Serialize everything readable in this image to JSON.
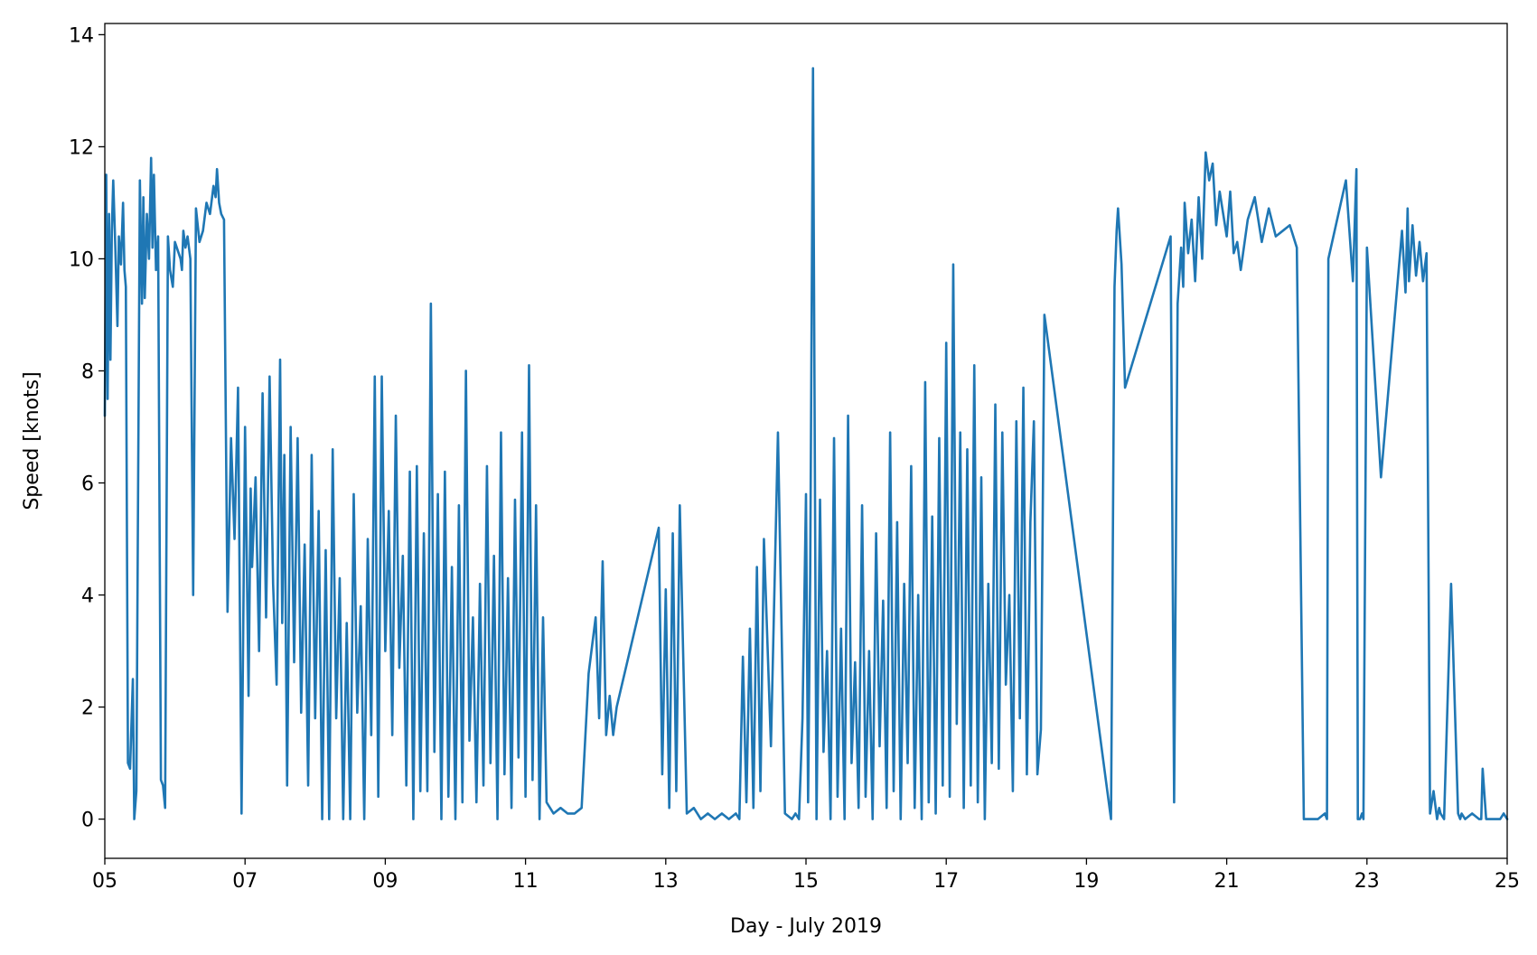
{
  "chart_data": {
    "type": "line",
    "title": "",
    "xlabel": "Day - July 2019",
    "ylabel": "Speed [knots]",
    "xlim": [
      5,
      25
    ],
    "ylim": [
      -0.7,
      14.2
    ],
    "x_ticks": [
      5,
      7,
      9,
      11,
      13,
      15,
      17,
      19,
      21,
      23,
      25
    ],
    "x_tick_labels": [
      "05",
      "07",
      "09",
      "11",
      "13",
      "15",
      "17",
      "19",
      "21",
      "23",
      "25"
    ],
    "y_ticks": [
      0,
      2,
      4,
      6,
      8,
      10,
      12,
      14
    ],
    "y_tick_labels": [
      "0",
      "2",
      "4",
      "6",
      "8",
      "10",
      "12",
      "14"
    ],
    "grid": false,
    "legend": "none",
    "series": [
      {
        "color": "#1f77b4",
        "x": [
          5.0,
          5.02,
          5.04,
          5.06,
          5.08,
          5.1,
          5.12,
          5.15,
          5.18,
          5.2,
          5.23,
          5.26,
          5.28,
          5.3,
          5.33,
          5.36,
          5.4,
          5.42,
          5.45,
          5.5,
          5.53,
          5.55,
          5.57,
          5.6,
          5.63,
          5.66,
          5.68,
          5.7,
          5.73,
          5.76,
          5.8,
          5.83,
          5.86,
          5.9,
          5.93,
          5.97,
          6.0,
          6.08,
          6.1,
          6.12,
          6.15,
          6.18,
          6.22,
          6.26,
          6.3,
          6.35,
          6.4,
          6.45,
          6.5,
          6.55,
          6.58,
          6.6,
          6.63,
          6.66,
          6.7,
          6.75,
          6.8,
          6.85,
          6.9,
          6.95,
          7.0,
          7.05,
          7.08,
          7.1,
          7.15,
          7.2,
          7.25,
          7.3,
          7.35,
          7.4,
          7.45,
          7.5,
          7.53,
          7.56,
          7.6,
          7.65,
          7.7,
          7.75,
          7.8,
          7.85,
          7.9,
          7.95,
          8.0,
          8.05,
          8.1,
          8.15,
          8.2,
          8.25,
          8.3,
          8.35,
          8.4,
          8.45,
          8.5,
          8.55,
          8.6,
          8.65,
          8.7,
          8.75,
          8.8,
          8.85,
          8.9,
          8.95,
          9.0,
          9.05,
          9.1,
          9.15,
          9.2,
          9.25,
          9.3,
          9.35,
          9.4,
          9.45,
          9.5,
          9.55,
          9.6,
          9.65,
          9.7,
          9.75,
          9.8,
          9.85,
          9.9,
          9.95,
          10.0,
          10.05,
          10.1,
          10.15,
          10.2,
          10.25,
          10.3,
          10.35,
          10.4,
          10.45,
          10.5,
          10.55,
          10.6,
          10.65,
          10.7,
          10.75,
          10.8,
          10.85,
          10.9,
          10.95,
          11.0,
          11.05,
          11.1,
          11.15,
          11.2,
          11.25,
          11.3,
          11.35,
          11.4,
          11.5,
          11.6,
          11.7,
          11.8,
          11.9,
          12.0,
          12.05,
          12.1,
          12.15,
          12.2,
          12.25,
          12.3,
          12.9,
          12.95,
          13.0,
          13.05,
          13.1,
          13.15,
          13.2,
          13.3,
          13.4,
          13.5,
          13.6,
          13.7,
          13.8,
          13.9,
          14.0,
          14.05,
          14.1,
          14.15,
          14.2,
          14.25,
          14.3,
          14.35,
          14.4,
          14.5,
          14.6,
          14.7,
          14.8,
          14.85,
          14.9,
          14.95,
          15.0,
          15.03,
          15.06,
          15.1,
          15.15,
          15.2,
          15.25,
          15.3,
          15.35,
          15.4,
          15.45,
          15.5,
          15.55,
          15.6,
          15.65,
          15.7,
          15.75,
          15.8,
          15.85,
          15.9,
          15.95,
          16.0,
          16.05,
          16.1,
          16.15,
          16.2,
          16.25,
          16.3,
          16.35,
          16.4,
          16.45,
          16.5,
          16.55,
          16.6,
          16.65,
          16.7,
          16.75,
          16.8,
          16.85,
          16.9,
          16.95,
          17.0,
          17.05,
          17.1,
          17.15,
          17.2,
          17.25,
          17.3,
          17.35,
          17.4,
          17.45,
          17.5,
          17.55,
          17.6,
          17.65,
          17.7,
          17.75,
          17.8,
          17.85,
          17.9,
          17.95,
          18.0,
          18.05,
          18.1,
          18.15,
          18.2,
          18.25,
          18.3,
          18.35,
          18.4,
          19.35,
          19.4,
          19.43,
          19.45,
          19.5,
          19.55,
          20.2,
          20.25,
          20.3,
          20.35,
          20.38,
          20.4,
          20.45,
          20.5,
          20.55,
          20.6,
          20.65,
          20.7,
          20.75,
          20.8,
          20.85,
          20.9,
          20.95,
          21.0,
          21.05,
          21.1,
          21.15,
          21.2,
          21.3,
          21.4,
          21.5,
          21.6,
          21.7,
          21.8,
          21.9,
          22.0,
          22.1,
          22.2,
          22.3,
          22.4,
          22.43,
          22.45,
          22.7,
          22.8,
          22.85,
          22.87,
          22.9,
          22.93,
          22.95,
          23.0,
          23.2,
          23.5,
          23.55,
          23.58,
          23.6,
          23.65,
          23.7,
          23.75,
          23.8,
          23.85,
          23.9,
          23.95,
          24.0,
          24.03,
          24.05,
          24.1,
          24.2,
          24.3,
          24.33,
          24.35,
          24.4,
          24.5,
          24.6,
          24.63,
          24.65,
          24.7,
          24.8,
          24.9,
          24.95,
          25.0
        ],
        "y": [
          7.2,
          11.5,
          7.5,
          10.8,
          8.2,
          10.5,
          11.4,
          10.2,
          8.8,
          10.4,
          9.9,
          11.0,
          9.8,
          9.5,
          1.0,
          0.9,
          2.5,
          0.0,
          0.5,
          11.4,
          9.2,
          11.1,
          9.3,
          10.8,
          10.0,
          11.8,
          10.2,
          11.5,
          9.8,
          10.4,
          0.7,
          0.6,
          0.2,
          10.4,
          9.8,
          9.5,
          10.3,
          10.0,
          9.8,
          10.5,
          10.2,
          10.4,
          10.0,
          4.0,
          10.9,
          10.3,
          10.5,
          11.0,
          10.8,
          11.3,
          11.1,
          11.6,
          11.0,
          10.8,
          10.7,
          3.7,
          6.8,
          5.0,
          7.7,
          0.1,
          7.0,
          2.2,
          5.9,
          4.5,
          6.1,
          3.0,
          7.6,
          3.6,
          7.9,
          4.2,
          2.4,
          8.2,
          3.5,
          6.5,
          0.6,
          7.0,
          2.8,
          6.8,
          1.9,
          4.9,
          0.6,
          6.5,
          1.8,
          5.5,
          0.0,
          4.8,
          0.0,
          6.6,
          1.8,
          4.3,
          0.0,
          3.5,
          0.0,
          5.8,
          1.9,
          3.8,
          0.0,
          5.0,
          1.5,
          7.9,
          0.4,
          7.9,
          3.0,
          5.5,
          1.5,
          7.2,
          2.7,
          4.7,
          0.6,
          6.2,
          0.0,
          6.3,
          0.5,
          5.1,
          0.5,
          9.2,
          1.2,
          5.8,
          0.0,
          6.2,
          0.4,
          4.5,
          0.0,
          5.6,
          0.3,
          8.0,
          1.4,
          3.6,
          0.3,
          4.2,
          0.6,
          6.3,
          1.0,
          4.7,
          0.0,
          6.9,
          0.8,
          4.3,
          0.2,
          5.7,
          1.1,
          6.9,
          0.4,
          8.1,
          0.7,
          5.6,
          0.0,
          3.6,
          0.3,
          0.2,
          0.1,
          0.2,
          0.1,
          0.1,
          0.2,
          2.6,
          3.6,
          1.8,
          4.6,
          1.5,
          2.2,
          1.5,
          2.0,
          5.2,
          0.8,
          4.1,
          0.2,
          5.1,
          0.5,
          5.6,
          0.1,
          0.2,
          0.0,
          0.1,
          0.0,
          0.1,
          0.0,
          0.1,
          0.0,
          2.9,
          0.3,
          3.4,
          0.2,
          4.5,
          0.5,
          5.0,
          1.3,
          6.9,
          0.1,
          0.0,
          0.1,
          0.0,
          1.8,
          5.8,
          0.3,
          4.4,
          13.4,
          0.0,
          5.7,
          1.2,
          3.0,
          0.0,
          6.8,
          0.4,
          3.4,
          0.0,
          7.2,
          1.0,
          2.8,
          0.2,
          5.6,
          0.4,
          3.0,
          0.0,
          5.1,
          1.3,
          3.9,
          0.2,
          6.9,
          0.5,
          5.3,
          0.0,
          4.2,
          1.0,
          6.3,
          0.2,
          4.0,
          0.0,
          7.8,
          0.3,
          5.4,
          0.1,
          6.8,
          0.6,
          8.5,
          0.4,
          9.9,
          1.7,
          6.9,
          0.2,
          6.6,
          0.6,
          8.1,
          0.3,
          6.1,
          0.0,
          4.2,
          1.0,
          7.4,
          0.9,
          6.9,
          2.4,
          4.0,
          0.5,
          7.1,
          1.8,
          7.7,
          0.8,
          5.3,
          7.1,
          0.8,
          1.6,
          9.0,
          0.0,
          9.5,
          10.5,
          10.9,
          9.9,
          7.7,
          10.4,
          0.3,
          9.2,
          10.2,
          9.5,
          11.0,
          10.1,
          10.7,
          9.6,
          11.1,
          10.0,
          11.9,
          11.4,
          11.7,
          10.6,
          11.2,
          10.8,
          10.4,
          11.2,
          10.1,
          10.3,
          9.8,
          10.7,
          11.1,
          10.3,
          10.9,
          10.4,
          10.5,
          10.6,
          10.2,
          0.0,
          0.0,
          0.0,
          0.1,
          0.0,
          10.0,
          11.4,
          9.6,
          11.6,
          0.0,
          0.0,
          0.1,
          0.0,
          10.2,
          6.1,
          10.5,
          9.4,
          10.9,
          9.6,
          10.6,
          9.7,
          10.3,
          9.6,
          10.1,
          0.1,
          0.5,
          0.0,
          0.2,
          0.1,
          0.0,
          4.2,
          0.1,
          0.0,
          0.1,
          0.0,
          0.1,
          0.0,
          0.0,
          0.9,
          0.0,
          0.0,
          0.0,
          0.1,
          0.0
        ]
      }
    ]
  }
}
